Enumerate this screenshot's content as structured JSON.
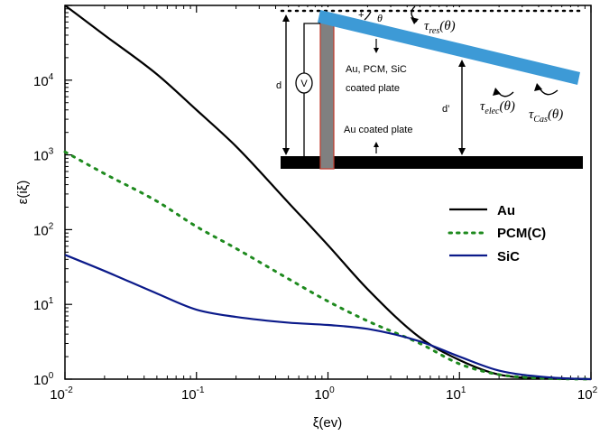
{
  "chart_data": {
    "type": "line",
    "title": "",
    "xlabel": "ξ(ev)",
    "ylabel": "ε(iξ)",
    "xscale": "log",
    "yscale": "log",
    "xlim": [
      0.01,
      100
    ],
    "ylim": [
      1,
      100000
    ],
    "grid": false,
    "legend_position": "right-middle",
    "x_ticks": [
      {
        "base": "10",
        "exp": "-2"
      },
      {
        "base": "10",
        "exp": "-1"
      },
      {
        "base": "10",
        "exp": "0"
      },
      {
        "base": "10",
        "exp": "1"
      },
      {
        "base": "10",
        "exp": "2"
      }
    ],
    "y_ticks": [
      {
        "base": "10",
        "exp": "0"
      },
      {
        "base": "10",
        "exp": "1"
      },
      {
        "base": "10",
        "exp": "2"
      },
      {
        "base": "10",
        "exp": "3"
      },
      {
        "base": "10",
        "exp": "4"
      }
    ],
    "series": [
      {
        "name": "Au",
        "color": "#000000",
        "style": "solid",
        "x": [
          0.01,
          0.02,
          0.05,
          0.1,
          0.2,
          0.5,
          1,
          2,
          5,
          10,
          20,
          50,
          100
        ],
        "y": [
          100000,
          40000,
          12000,
          4000,
          1300,
          230,
          62,
          16,
          3.6,
          1.8,
          1.15,
          1.02,
          1.0
        ]
      },
      {
        "name": "PCM(C)",
        "color": "#1e8a1e",
        "style": "dotted",
        "x": [
          0.01,
          0.02,
          0.05,
          0.1,
          0.2,
          0.5,
          1,
          2,
          5,
          10,
          20,
          50,
          100
        ],
        "y": [
          1100,
          560,
          240,
          110,
          56,
          22,
          11,
          6.0,
          3.0,
          1.6,
          1.15,
          1.02,
          1.0
        ]
      },
      {
        "name": "SiC",
        "color": "#0b1a8a",
        "style": "solid",
        "x": [
          0.01,
          0.02,
          0.05,
          0.1,
          0.2,
          0.5,
          1,
          2,
          5,
          10,
          20,
          50,
          100
        ],
        "y": [
          46,
          28,
          14,
          8.5,
          6.8,
          5.7,
          5.3,
          4.7,
          3.2,
          2.0,
          1.3,
          1.05,
          1.0
        ]
      }
    ]
  },
  "inset": {
    "labels": {
      "tau_res": "τ",
      "tau_res_sub": "res",
      "tau_res_arg": "(θ)",
      "tau_elec": "τ",
      "tau_elec_sub": "elec",
      "tau_elec_arg": "(θ)",
      "tau_cas": "τ",
      "tau_cas_sub": "Cas",
      "tau_cas_arg": "(θ)",
      "theta": "θ",
      "plus": "+",
      "voltage": "V",
      "d": "d",
      "d_prime": "d’",
      "upper_plate_line1": "Au, PCM, SiC",
      "upper_plate_line2": "coated plate",
      "lower_plate": "Au coated plate"
    },
    "colors": {
      "beam": "#3d9ad6",
      "pillar": "#808080",
      "pillar_border": "#c0392b",
      "base_plate": "#000000"
    }
  }
}
